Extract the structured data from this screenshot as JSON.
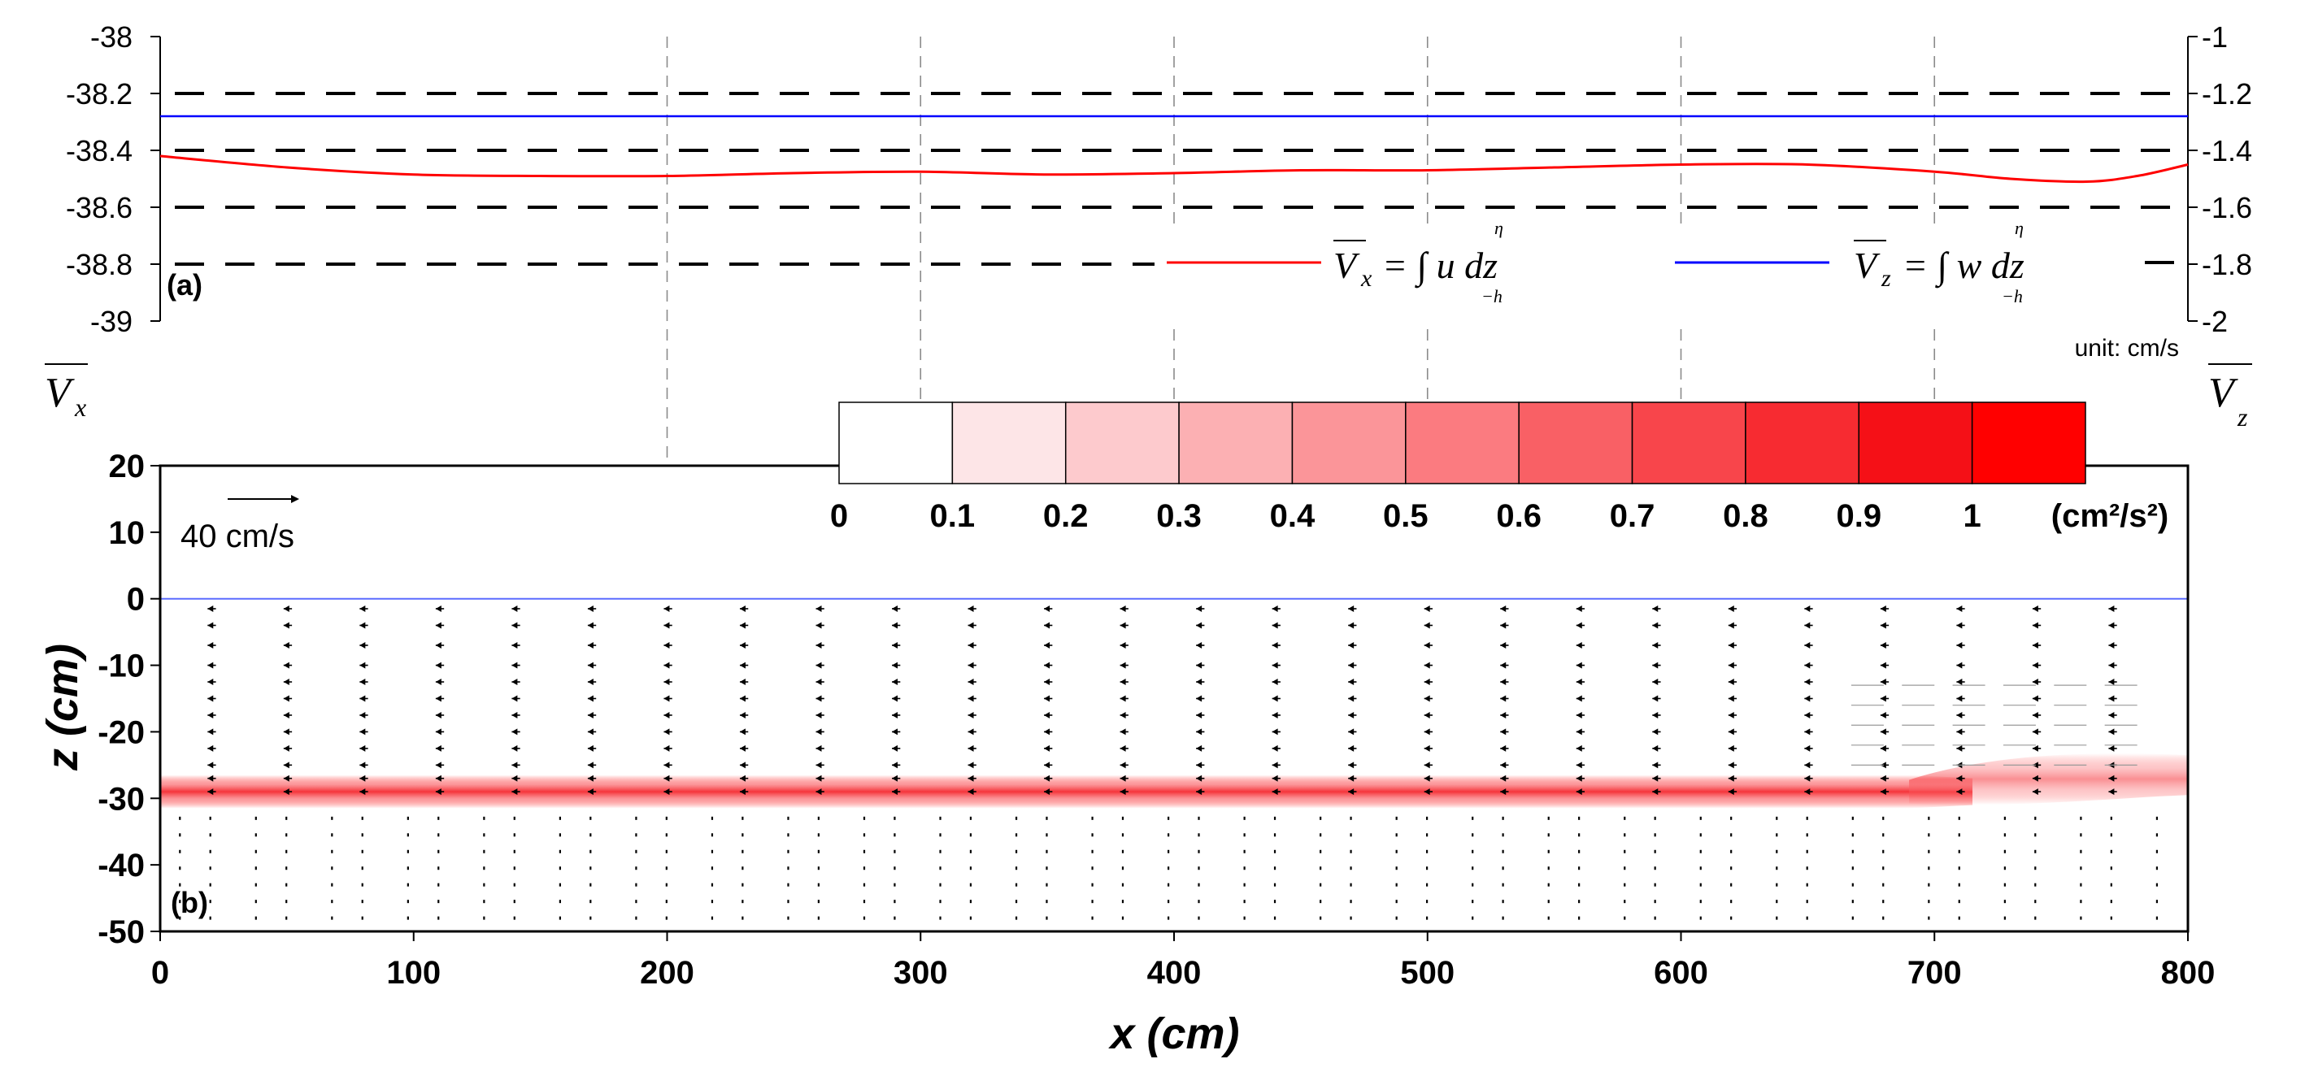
{
  "chart_data": [
    {
      "panel": "top",
      "type": "line",
      "panel_label": "(a)",
      "unit_note": "unit: cm/s",
      "x_range": [
        0,
        800
      ],
      "x_grid_lines": [
        200,
        300,
        400,
        500,
        600,
        700
      ],
      "left_axis": {
        "label": "V_x",
        "label_main": "V",
        "label_sub": "x",
        "range": [
          -39,
          -38
        ],
        "ticks": [
          -38,
          -38.2,
          -38.4,
          -38.6,
          -38.8,
          -39
        ],
        "tick_labels": [
          "-38",
          "-38.2",
          "-38.4",
          "-38.6",
          "-38.8",
          "-39"
        ]
      },
      "right_axis": {
        "label": "V_z",
        "label_main": "V",
        "label_sub": "z",
        "range": [
          -2,
          -1
        ],
        "ticks": [
          -1,
          -1.2,
          -1.4,
          -1.6,
          -1.8,
          -2
        ],
        "tick_labels": [
          "-1",
          "-1.2",
          "-1.4",
          "-1.6",
          "-1.8",
          "-2"
        ]
      },
      "dashed_reference_levels": [
        -38.2,
        -38.4,
        -38.6,
        -38.8
      ],
      "series": [
        {
          "name": "Vx = ∫_{-h}^{η} u dz",
          "legend_text": "= ∫ u dz",
          "axis": "left",
          "color": "#ff0000",
          "x": [
            0,
            50,
            100,
            150,
            200,
            250,
            300,
            350,
            400,
            450,
            500,
            550,
            600,
            650,
            700,
            730,
            760,
            780,
            800
          ],
          "values": [
            -38.42,
            -38.46,
            -38.485,
            -38.49,
            -38.49,
            -38.48,
            -38.475,
            -38.485,
            -38.48,
            -38.47,
            -38.47,
            -38.46,
            -38.45,
            -38.45,
            -38.475,
            -38.5,
            -38.51,
            -38.49,
            -38.45
          ]
        },
        {
          "name": "Vz = ∫_{-h}^{η} w dz",
          "legend_text": "= ∫ w dz",
          "axis": "right",
          "color": "#0000ff",
          "x": [
            0,
            200,
            400,
            600,
            800
          ],
          "values": [
            -1.28,
            -1.28,
            -1.28,
            -1.28,
            -1.28
          ]
        }
      ],
      "legend_limits": {
        "upper": "η",
        "lower": "−h"
      }
    },
    {
      "panel": "bottom",
      "type": "heatmap",
      "panel_label": "(b)",
      "xlabel": "x (cm)",
      "ylabel": "z (cm)",
      "xlim": [
        0,
        800
      ],
      "ylim": [
        -50,
        20
      ],
      "x_ticks": [
        0,
        100,
        200,
        300,
        400,
        500,
        600,
        700,
        800
      ],
      "x_tick_labels": [
        "0",
        "100",
        "200",
        "300",
        "400",
        "500",
        "600",
        "700",
        "800"
      ],
      "y_ticks": [
        20,
        10,
        0,
        -10,
        -20,
        -30,
        -40,
        -50
      ],
      "y_tick_labels": [
        "20",
        "10",
        "0",
        "-10",
        "-20",
        "-30",
        "-40",
        "-50"
      ],
      "free_surface_z": 0,
      "reference_vector_label": "40 cm/s",
      "reference_vector_magnitude": 40,
      "colorbar": {
        "unit": "(cm²/s²)",
        "ticks": [
          0,
          0.1,
          0.2,
          0.3,
          0.4,
          0.5,
          0.6,
          0.7,
          0.8,
          0.9,
          1
        ],
        "tick_labels": [
          "0",
          "0.1",
          "0.2",
          "0.3",
          "0.4",
          "0.5",
          "0.6",
          "0.7",
          "0.8",
          "0.9",
          "1"
        ],
        "colors": [
          "#ffffff",
          "#fde5e7",
          "#fdcacd",
          "#fcb0b3",
          "#fb9599",
          "#fb7b80",
          "#f96065",
          "#f8454b",
          "#f72b31",
          "#f51017",
          "#ff0000"
        ]
      },
      "shear_layer": {
        "center_z": -29,
        "half_width": 2.5,
        "x_end_flat": 690,
        "raised_center_z": -27
      },
      "vector_columns_x": [
        10,
        22,
        40,
        52,
        70,
        82,
        100,
        112,
        130,
        142,
        160,
        172,
        190,
        202,
        220,
        232,
        250,
        262,
        280,
        292,
        310,
        322,
        340,
        352,
        370,
        382,
        400,
        412,
        430,
        442,
        460,
        472,
        490,
        502,
        520,
        532,
        550,
        562,
        580,
        592,
        610,
        622,
        640,
        652,
        670,
        682,
        700,
        712,
        730,
        742,
        760,
        772,
        790
      ],
      "upper_vector_u": -2.2,
      "lower_vector_u": 0
    }
  ]
}
